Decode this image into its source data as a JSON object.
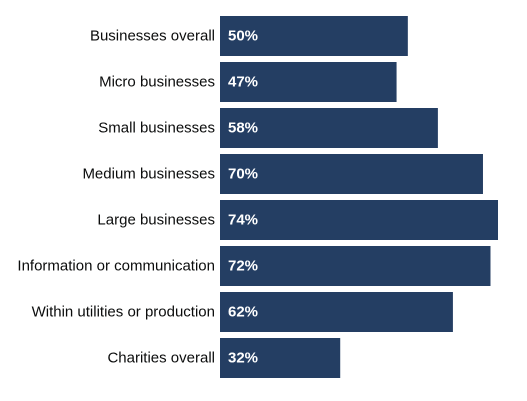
{
  "chart_data": {
    "type": "bar",
    "orientation": "horizontal",
    "categories": [
      "Businesses overall",
      "Micro businesses",
      "Small businesses",
      "Medium businesses",
      "Large businesses",
      "Information or communication",
      "Within utilities or production",
      "Charities overall"
    ],
    "values": [
      50,
      47,
      58,
      70,
      74,
      72,
      62,
      32
    ],
    "value_labels": [
      "50%",
      "47%",
      "58%",
      "70%",
      "74%",
      "72%",
      "62%",
      "32%"
    ],
    "unit": "%",
    "xlim": [
      0,
      74
    ],
    "grid": false,
    "legend": "none",
    "bar_color": "#243e63",
    "label_color": "#0b0c0c",
    "value_label_color": "#ffffff"
  }
}
